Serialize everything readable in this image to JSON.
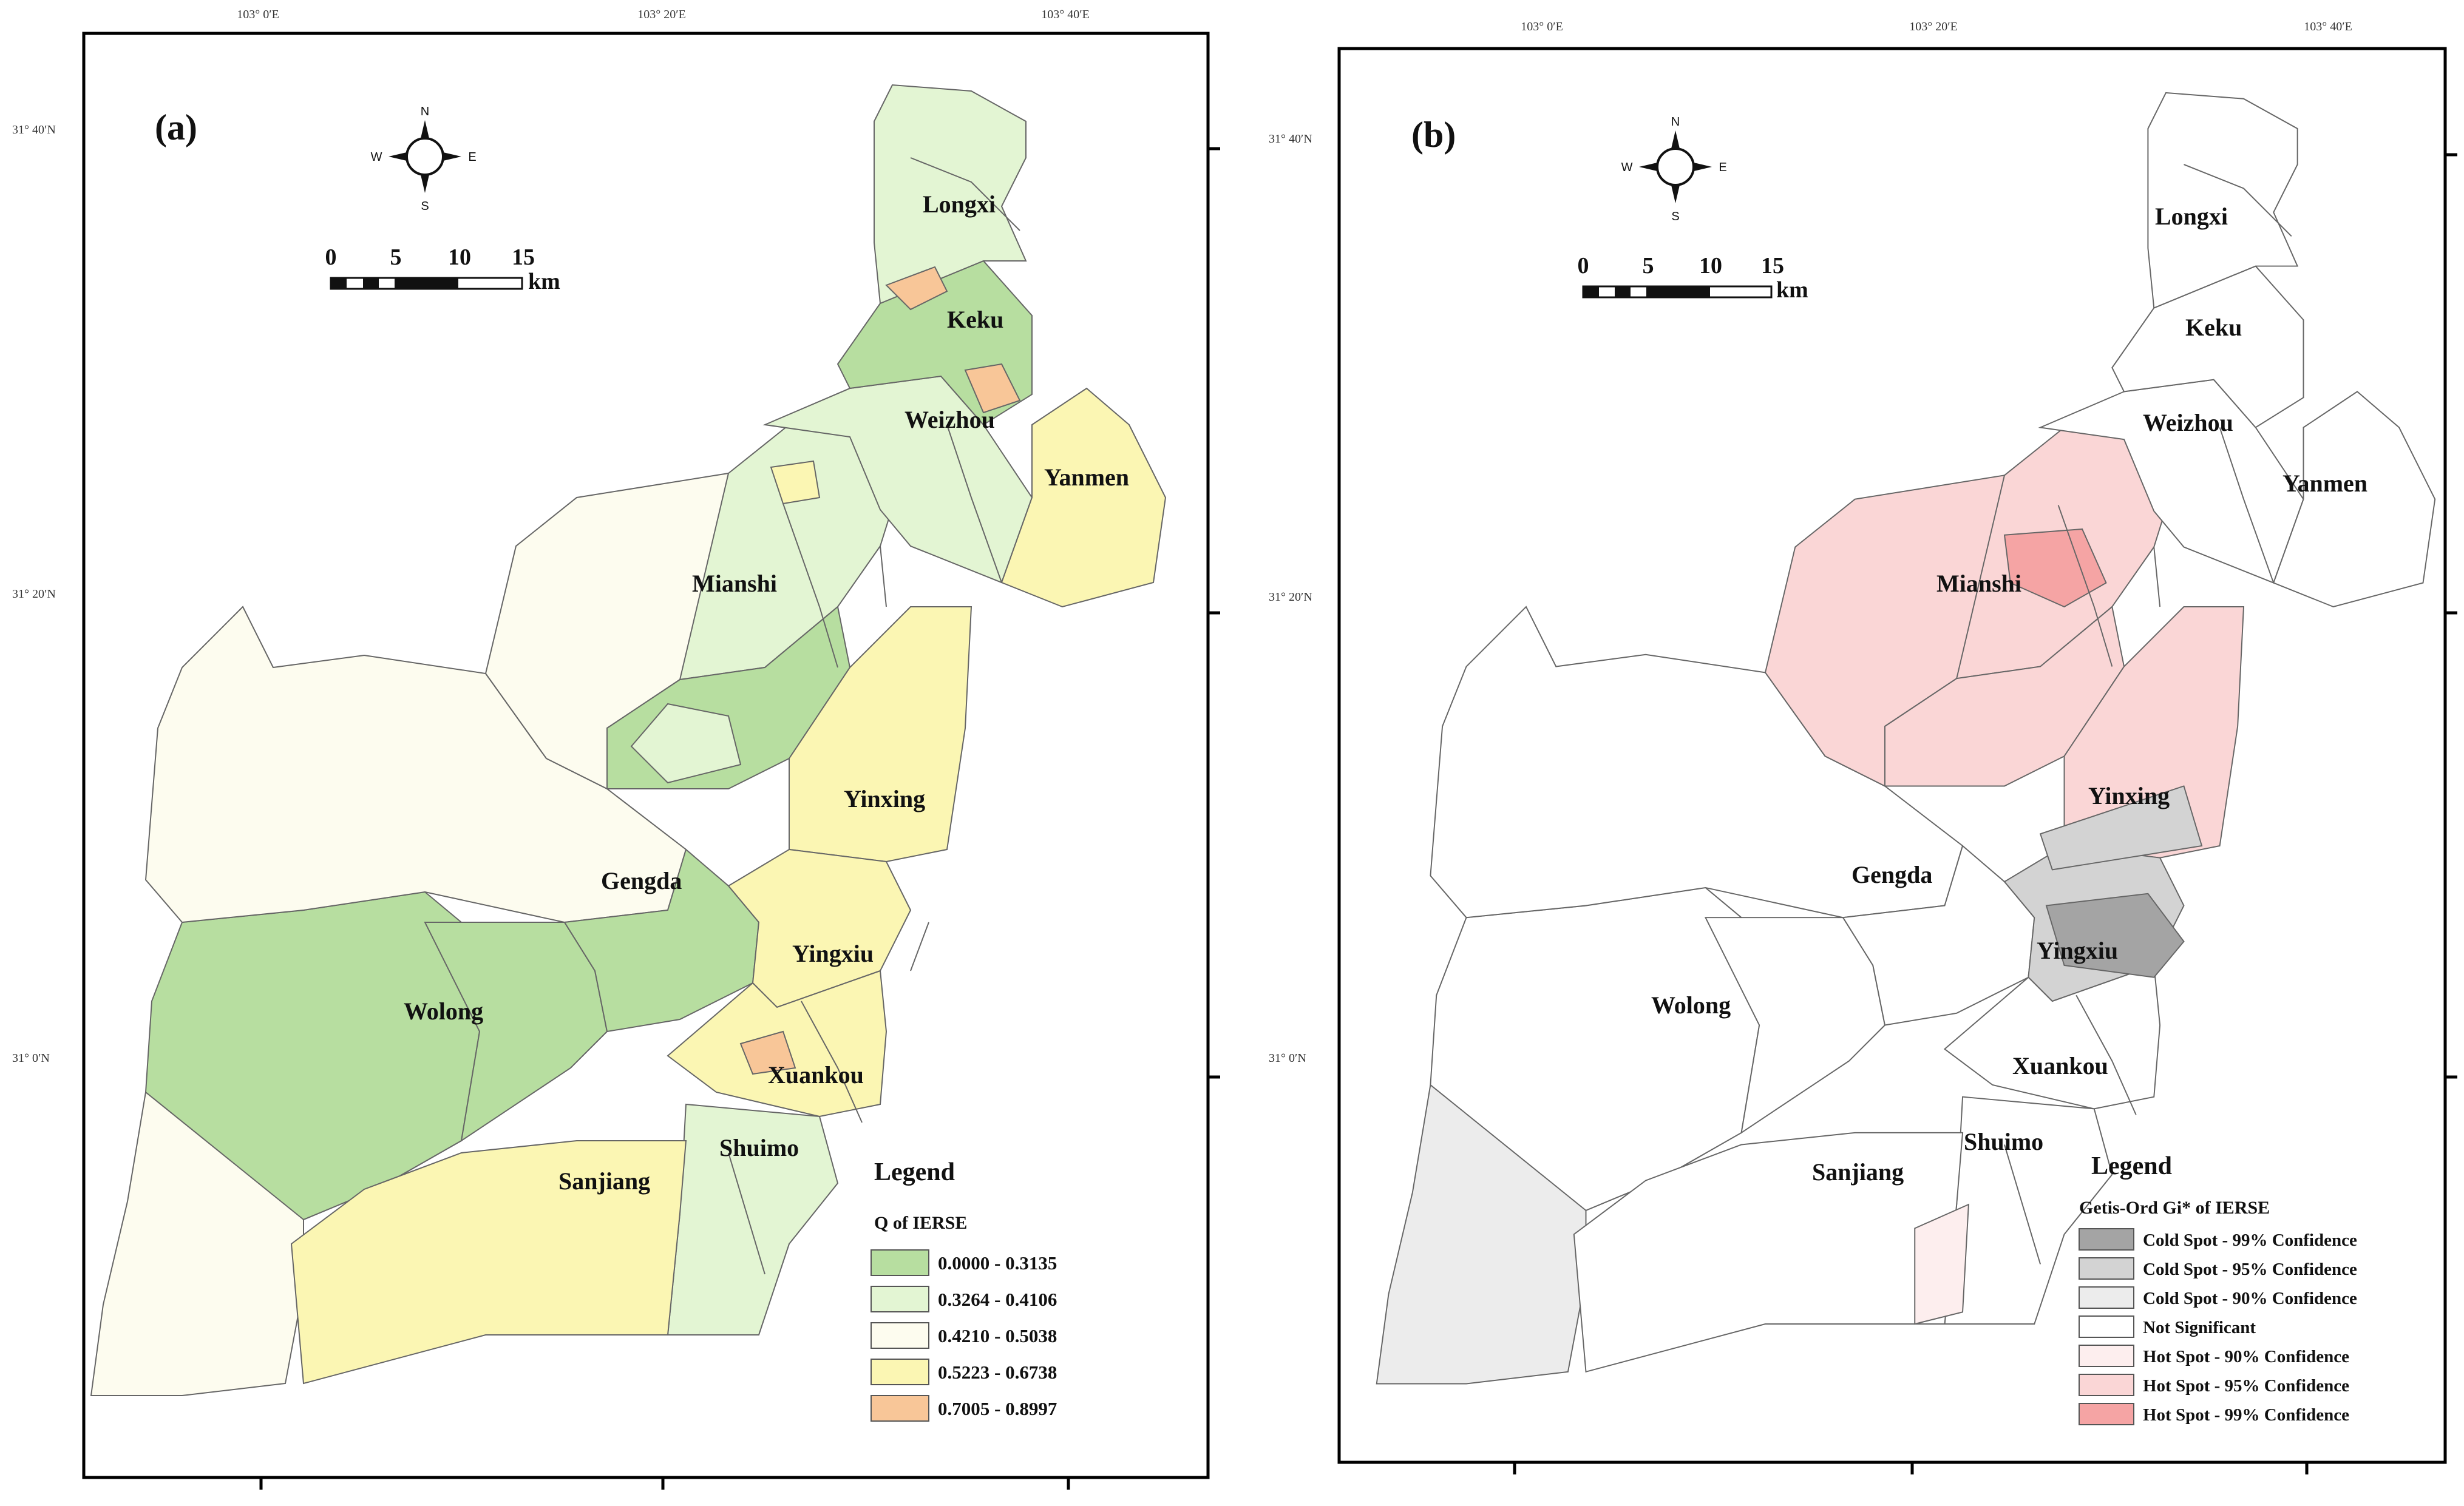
{
  "panel_a": {
    "tag": "(a)",
    "top_ticks": [
      "103° 0′E",
      "103° 20′E",
      "103° 40′E"
    ],
    "left_ticks": [
      "31° 40′N",
      "31° 20′N",
      "31° 0′N"
    ],
    "compass": {
      "n": "N",
      "s": "S",
      "e": "E",
      "w": "W"
    },
    "scale": {
      "ticks": [
        "0",
        "5",
        "10",
        "15"
      ],
      "unit": "km"
    },
    "regions": [
      "Longxi",
      "Keku",
      "Weizhou",
      "Yanmen",
      "Mianshi",
      "Yinxing",
      "Gengda",
      "Yingxiu",
      "Wolong",
      "Xuankou",
      "Shuimo",
      "Sanjiang"
    ],
    "legend": {
      "title": "Legend",
      "subtitle": "Q  of  IERSE",
      "items": [
        {
          "label": "0.0000 - 0.3135",
          "color": "#b7dea0"
        },
        {
          "label": "0.3264 - 0.4106",
          "color": "#e3f5d3"
        },
        {
          "label": "0.4210 - 0.5038",
          "color": "#fdfcef"
        },
        {
          "label": "0.5223 - 0.6738",
          "color": "#fbf6b3"
        },
        {
          "label": "0.7005 - 0.8997",
          "color": "#f8c698"
        }
      ]
    }
  },
  "panel_b": {
    "tag": "(b)",
    "top_ticks": [
      "103° 0′E",
      "103° 20′E",
      "103° 40′E"
    ],
    "left_ticks": [
      "31° 40′N",
      "31° 20′N",
      "31° 0′N"
    ],
    "compass": {
      "n": "N",
      "s": "S",
      "e": "E",
      "w": "W"
    },
    "scale": {
      "ticks": [
        "0",
        "5",
        "10",
        "15"
      ],
      "unit": "km"
    },
    "regions": [
      "Longxi",
      "Keku",
      "Weizhou",
      "Yanmen",
      "Mianshi",
      "Yinxing",
      "Gengda",
      "Yingxiu",
      "Wolong",
      "Xuankou",
      "Shuimo",
      "Sanjiang"
    ],
    "legend": {
      "title": "Legend",
      "subtitle": "Getis-Ord  Gi* of IERSE",
      "items": [
        {
          "label": "Cold Spot - 99% Confidence",
          "color": "#a4a4a4"
        },
        {
          "label": "Cold Spot - 95% Confidence",
          "color": "#d3d3d3"
        },
        {
          "label": "Cold Spot - 90% Confidence",
          "color": "#ececec"
        },
        {
          "label": "Not Significant",
          "color": "#ffffff"
        },
        {
          "label": "Hot Spot - 90% Confidence",
          "color": "#fdeeee"
        },
        {
          "label": "Hot Spot - 95% Confidence",
          "color": "#fad6d6"
        },
        {
          "label": "Hot Spot - 99% Confidence",
          "color": "#f5a4a4"
        }
      ]
    }
  }
}
